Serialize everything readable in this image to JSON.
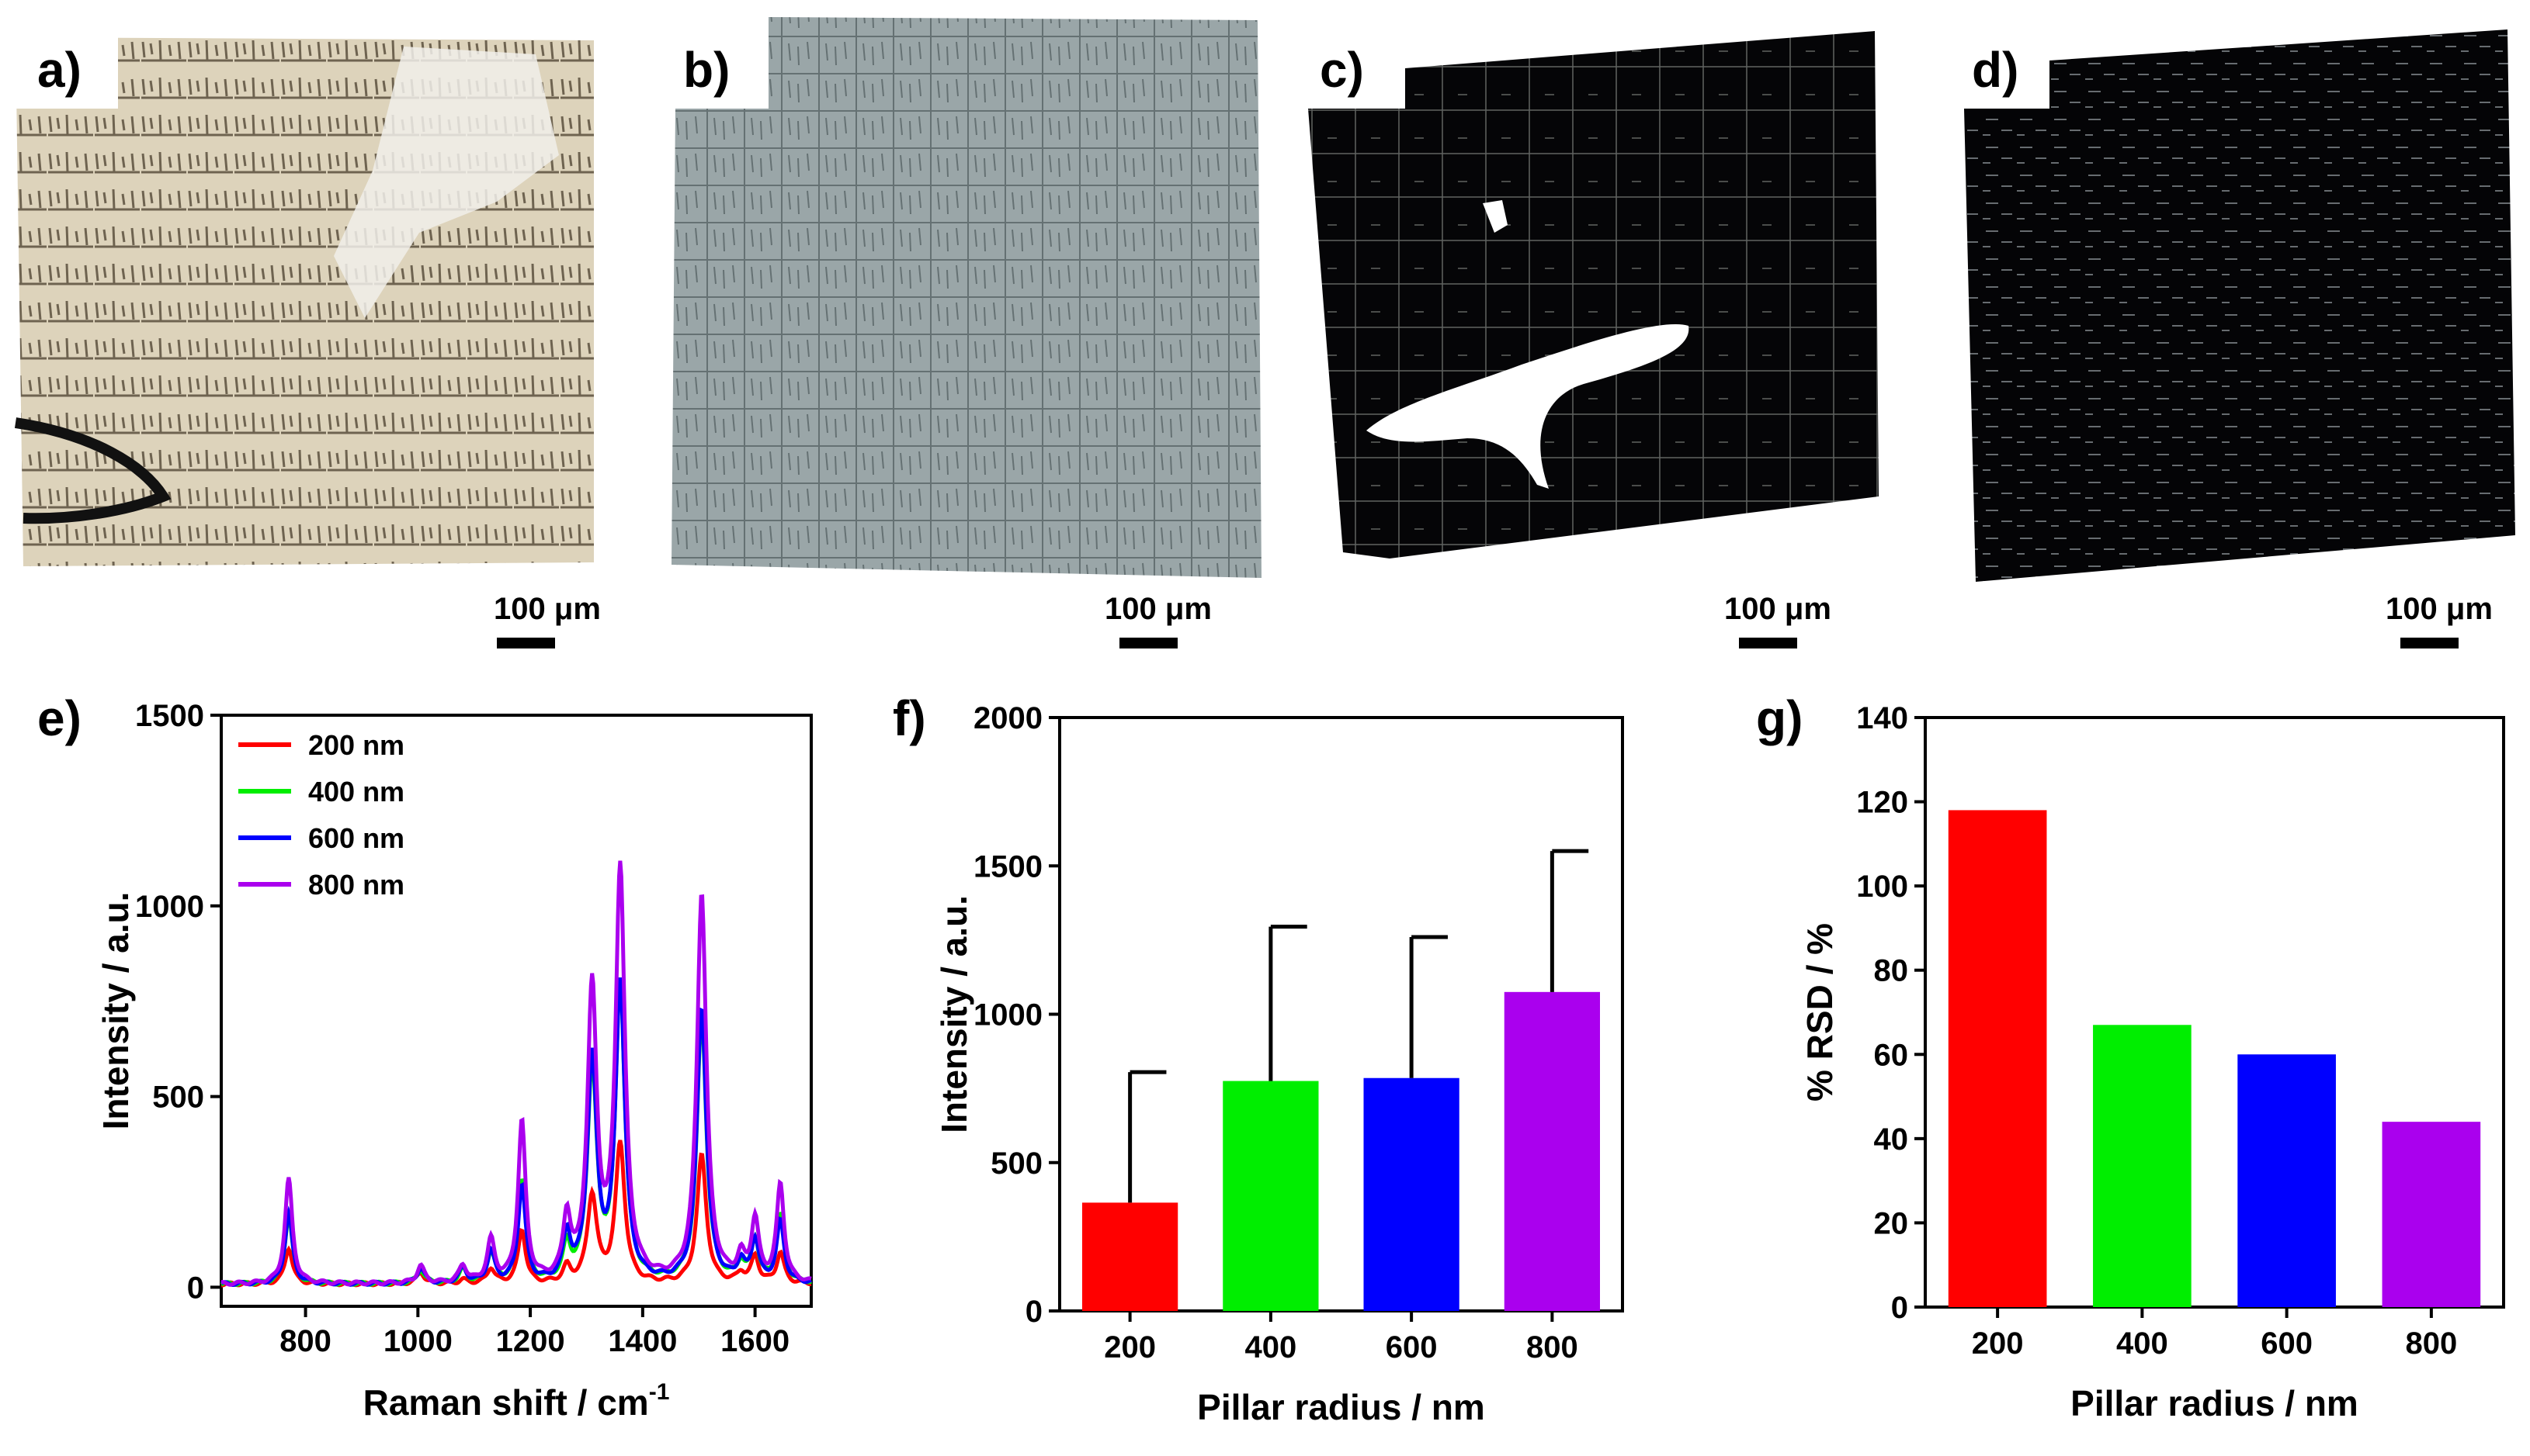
{
  "micrographs": [
    {
      "label": "a)",
      "scale_bar": "100 μm",
      "tone": "light",
      "base_color": "#ddd3bb",
      "grain_color": "#6e6350"
    },
    {
      "label": "b)",
      "scale_bar": "100 μm",
      "tone": "gray",
      "base_color": "#9aa6a8",
      "grain_color": "#4f5b5d"
    },
    {
      "label": "c)",
      "scale_bar": "100 μm",
      "tone": "dark",
      "base_color": "#050507",
      "grain_color": "#cfd6cf"
    },
    {
      "label": "d)",
      "scale_bar": "100 μm",
      "tone": "dark",
      "base_color": "#040406",
      "grain_color": "#b8c0c6"
    }
  ],
  "colors": {
    "r200": "#ff0000",
    "r400": "#00ee00",
    "r600": "#0000ff",
    "r800": "#aa00ee"
  },
  "chart_data": [
    {
      "panel": "e)",
      "type": "line",
      "title": "",
      "xlabel": "Raman shift / cm",
      "xlabel_sup": "-1",
      "ylabel": "Intensity / a.u.",
      "xlim": [
        650,
        1700
      ],
      "ylim": [
        -50,
        1500
      ],
      "xticks": [
        800,
        1000,
        1200,
        1400,
        1600
      ],
      "yticks": [
        0,
        500,
        1000,
        1500
      ],
      "legend_position": "top-left",
      "peak_positions": [
        770,
        1005,
        1080,
        1130,
        1185,
        1265,
        1310,
        1360,
        1505,
        1575,
        1600,
        1645
      ],
      "series": [
        {
          "name": "200 nm",
          "color": "#ff0000",
          "peak_heights": [
            95,
            30,
            10,
            40,
            140,
            40,
            230,
            365,
            335,
            25,
            70,
            80
          ]
        },
        {
          "name": "400 nm",
          "color": "#00ee00",
          "peak_heights": [
            180,
            35,
            35,
            80,
            270,
            90,
            560,
            780,
            700,
            45,
            110,
            175
          ]
        },
        {
          "name": "600 nm",
          "color": "#0000ff",
          "peak_heights": [
            185,
            40,
            40,
            80,
            255,
            120,
            580,
            780,
            720,
            50,
            110,
            160
          ]
        },
        {
          "name": "800 nm",
          "color": "#aa00ee",
          "peak_heights": [
            275,
            45,
            45,
            110,
            420,
            160,
            760,
            1075,
            1020,
            60,
            160,
            255
          ]
        }
      ]
    },
    {
      "panel": "f)",
      "type": "bar",
      "title": "",
      "xlabel": "Pillar radius / nm",
      "ylabel": "Intensity / a.u.",
      "ylim": [
        0,
        2000
      ],
      "yticks": [
        0,
        500,
        1000,
        1500,
        2000
      ],
      "categories": [
        "200",
        "400",
        "600",
        "800"
      ],
      "values": [
        365,
        775,
        785,
        1075
      ],
      "error_upper": [
        805,
        1295,
        1260,
        1550
      ],
      "colors": [
        "#ff0000",
        "#00ee00",
        "#0000ff",
        "#aa00ee"
      ]
    },
    {
      "panel": "g)",
      "type": "bar",
      "title": "",
      "xlabel": "Pillar radius / nm",
      "ylabel": "% RSD / %",
      "ylim": [
        0,
        140
      ],
      "yticks": [
        0,
        20,
        40,
        60,
        80,
        100,
        120,
        140
      ],
      "categories": [
        "200",
        "400",
        "600",
        "800"
      ],
      "values": [
        118,
        67,
        60,
        44
      ],
      "colors": [
        "#ff0000",
        "#00ee00",
        "#0000ff",
        "#aa00ee"
      ]
    }
  ]
}
